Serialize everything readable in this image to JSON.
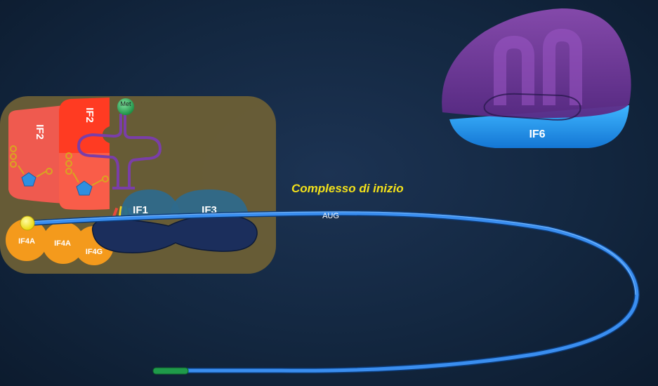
{
  "diagram": {
    "title": "Complesso di inizio",
    "codon_label": "AUG",
    "met_label": "Met",
    "factors": {
      "if2_back": "IF2",
      "if2_front": "IF2",
      "if1": "IF1",
      "if3": "IF3",
      "if4a_left": "IF4A",
      "if4a_mid": "IF4A",
      "if4g": "IF4G",
      "if6": "IF6"
    }
  },
  "colors": {
    "background": "#132740",
    "complex_box": "#6b5f36",
    "if2_back": "#ef5a4f",
    "if2_front": "#ff3b22",
    "mrna": "#2b7fd8",
    "small_subunit": "#1b2e5c",
    "if1_if3": "#2e6a8d",
    "if4": "#f49a1c",
    "cap": "#f6ea1c",
    "trna": "#7a3ea8",
    "met": "#23a552",
    "if6_top": "#7a3aa0",
    "if6_bottom": "#1e9bf0",
    "title": "#f3e11a",
    "tail": "#1f9a4a"
  }
}
